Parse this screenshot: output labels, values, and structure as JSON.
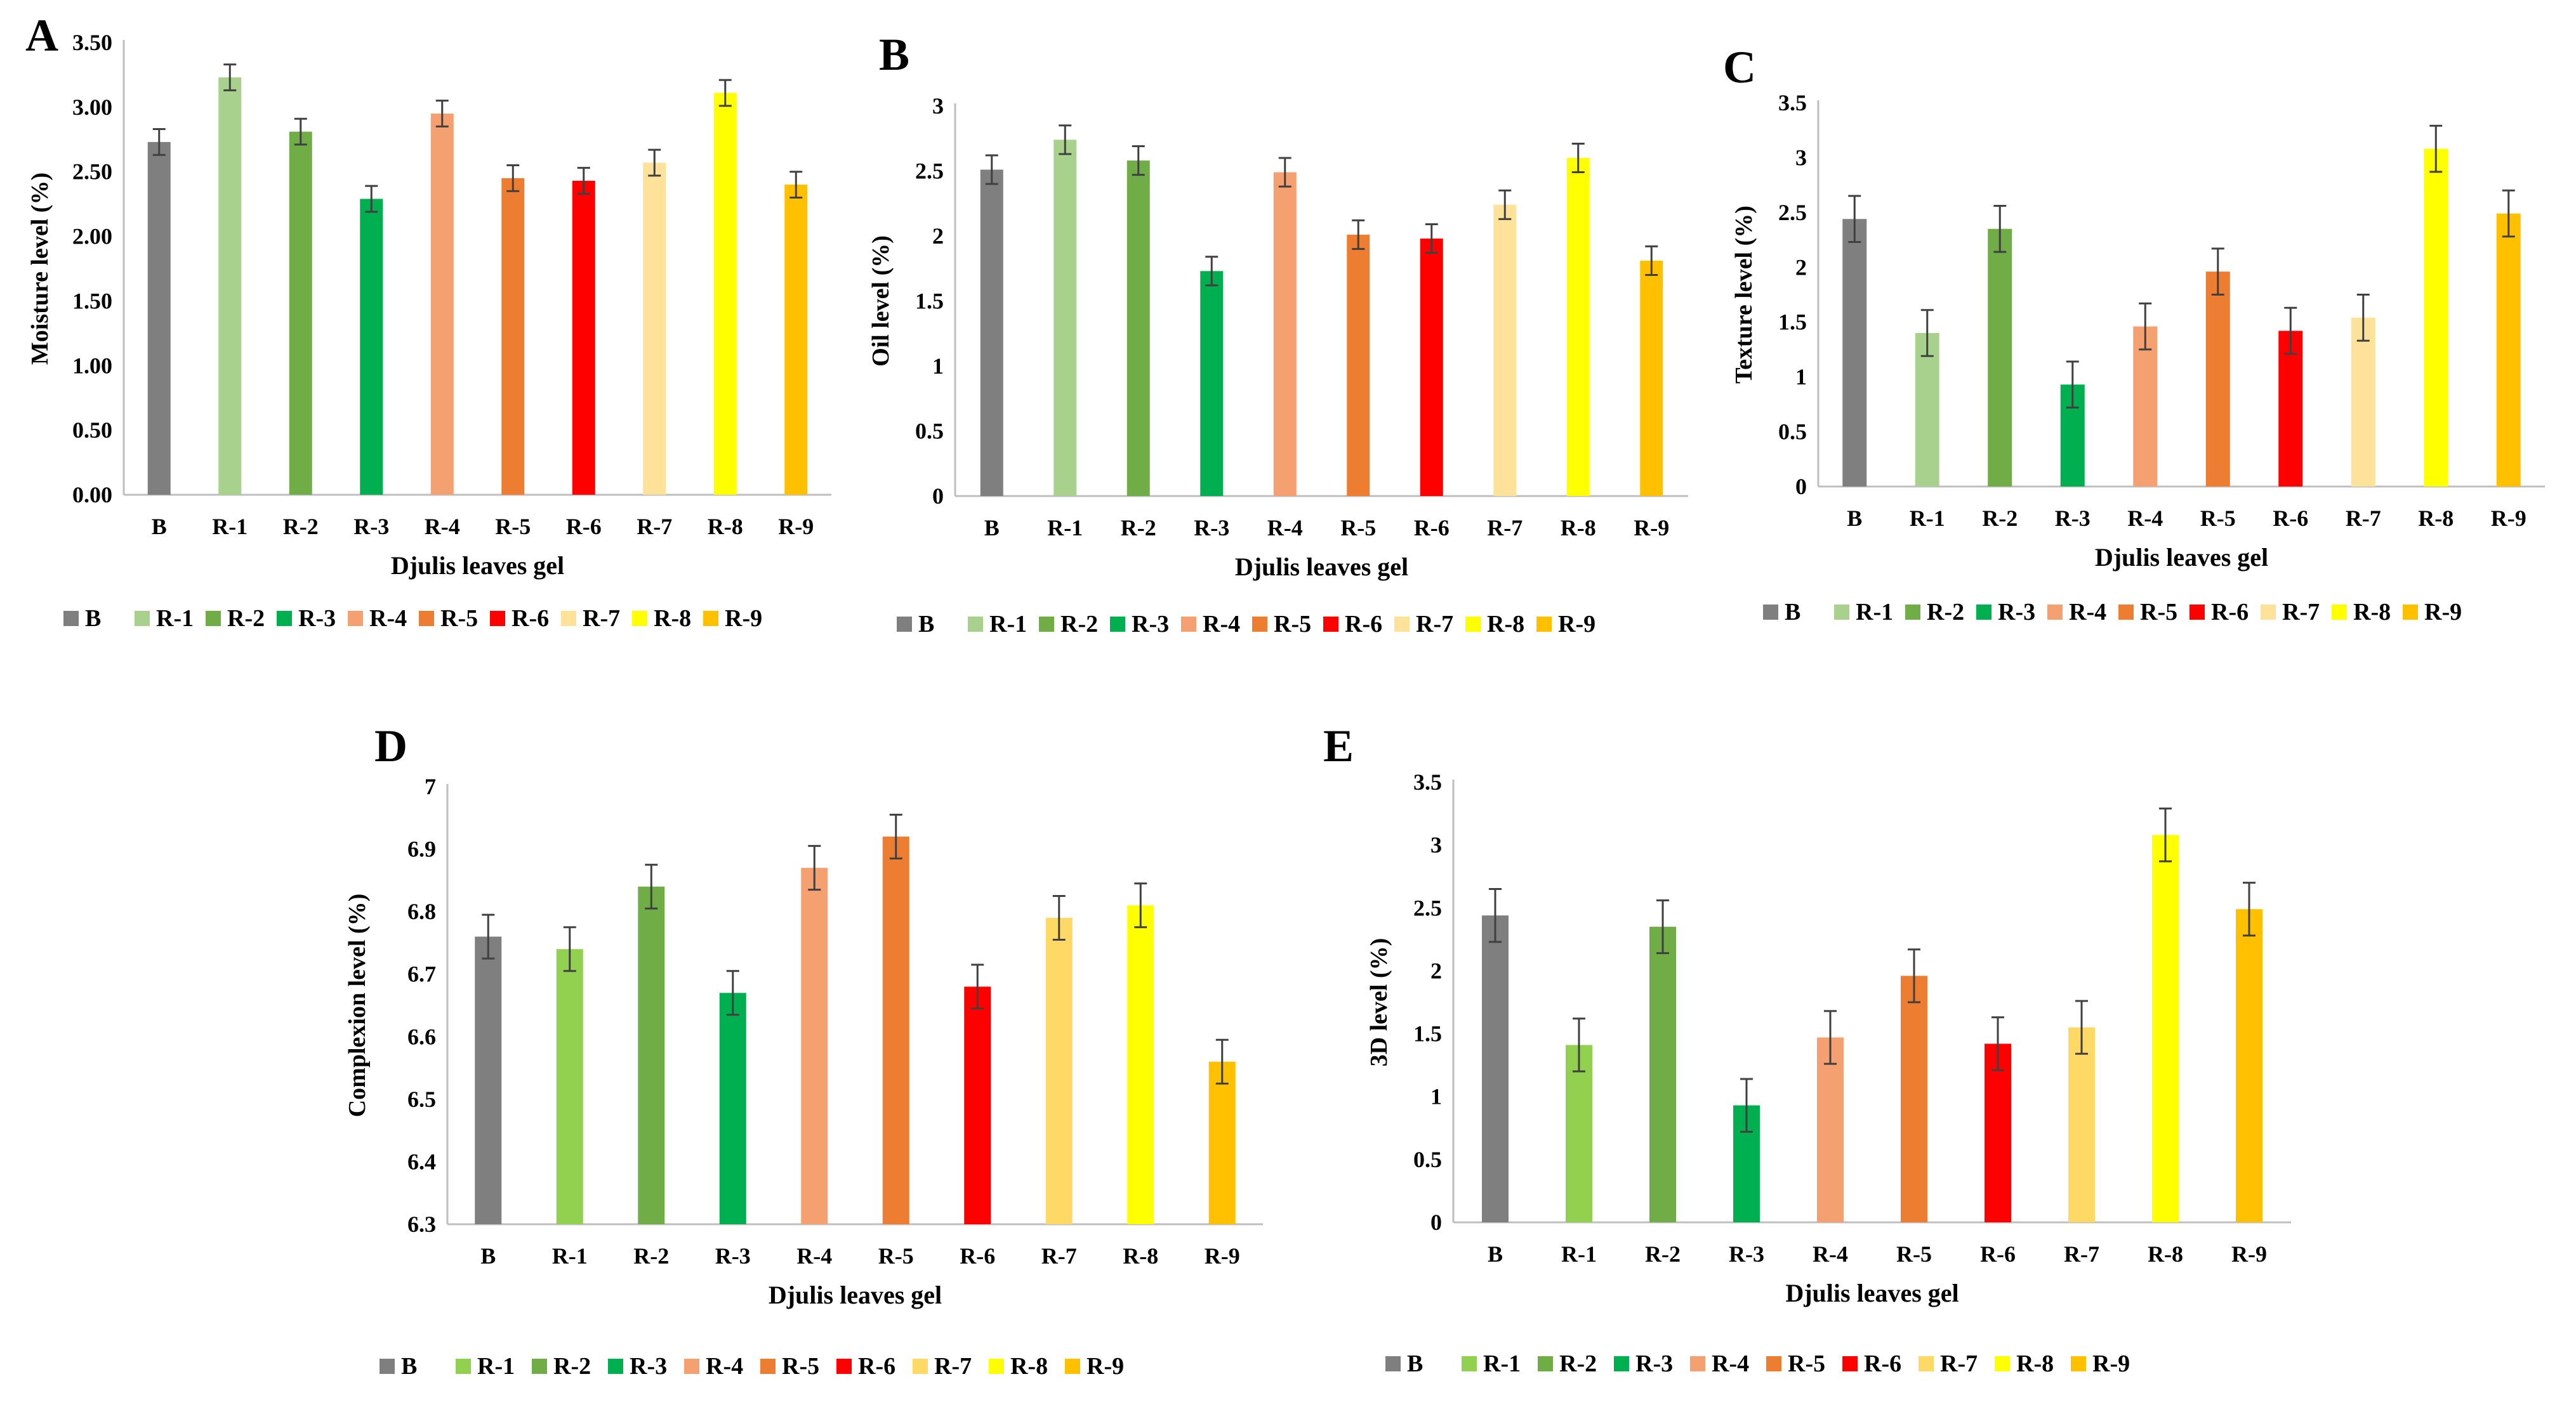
{
  "colors": {
    "B": "#7f7f7f",
    "R-1": "#a9d18e",
    "R-2": "#70ad47",
    "R-3": "#00b050",
    "R-4": "#f4a070",
    "R-5": "#ed7d31",
    "R-6": "#ff0000",
    "R-7": "#ffe29a",
    "R-8": "#ffff00",
    "R-9": "#ffc000",
    "R-1-bright": "#92d050",
    "R-7-bright": "#ffd966"
  },
  "chart_data": [
    {
      "panel": "A",
      "type": "bar",
      "title": "",
      "xlabel": "Djulis leaves gel",
      "ylabel": "Moisture level  (%)",
      "categories": [
        "B",
        "R-1",
        "R-2",
        "R-3",
        "R-4",
        "R-5",
        "R-6",
        "R-7",
        "R-8",
        "R-9"
      ],
      "values": [
        2.73,
        3.23,
        2.81,
        2.29,
        2.95,
        2.45,
        2.43,
        2.57,
        3.11,
        2.4
      ],
      "errors": [
        0.1,
        0.1,
        0.1,
        0.1,
        0.1,
        0.1,
        0.1,
        0.1,
        0.1,
        0.1
      ],
      "ylim": [
        0,
        3.5
      ],
      "yticks": [
        "0.00",
        "0.50",
        "1.00",
        "1.50",
        "2.00",
        "2.50",
        "3.00",
        "3.50"
      ],
      "legend": [
        "B",
        "R-1",
        "R-2",
        "R-3",
        "R-4",
        "R-5",
        "R-6",
        "R-7",
        "R-8",
        "R-9"
      ]
    },
    {
      "panel": "B",
      "type": "bar",
      "title": "",
      "xlabel": "Djulis leaves gel",
      "ylabel": "Oil level  (%)",
      "categories": [
        "B",
        "R-1",
        "R-2",
        "R-3",
        "R-4",
        "R-5",
        "R-6",
        "R-7",
        "R-8",
        "R-9"
      ],
      "values": [
        2.51,
        2.74,
        2.58,
        1.73,
        2.49,
        2.01,
        1.98,
        2.24,
        2.6,
        1.81
      ],
      "errors": [
        0.11,
        0.11,
        0.11,
        0.11,
        0.11,
        0.11,
        0.11,
        0.11,
        0.11,
        0.11
      ],
      "ylim": [
        0,
        3
      ],
      "yticks": [
        "0",
        "0.5",
        "1",
        "1.5",
        "2",
        "2.5",
        "3"
      ],
      "legend": [
        "B",
        "R-1",
        "R-2",
        "R-3",
        "R-4",
        "R-5",
        "R-6",
        "R-7",
        "R-8",
        "R-9"
      ]
    },
    {
      "panel": "C",
      "type": "bar",
      "title": "",
      "xlabel": "Djulis leaves gel",
      "ylabel": "Texture level  (%)",
      "categories": [
        "B",
        "R-1",
        "R-2",
        "R-3",
        "R-4",
        "R-5",
        "R-6",
        "R-7",
        "R-8",
        "R-9"
      ],
      "values": [
        2.44,
        1.4,
        2.35,
        0.93,
        1.46,
        1.96,
        1.42,
        1.54,
        3.08,
        2.49
      ],
      "errors": [
        0.21,
        0.21,
        0.21,
        0.21,
        0.21,
        0.21,
        0.21,
        0.21,
        0.21,
        0.21
      ],
      "ylim": [
        0,
        3.5
      ],
      "yticks": [
        "0",
        "0.5",
        "1",
        "1.5",
        "2",
        "2.5",
        "3",
        "3.5"
      ],
      "legend": [
        "B",
        "R-1",
        "R-2",
        "R-3",
        "R-4",
        "R-5",
        "R-6",
        "R-7",
        "R-8",
        "R-9"
      ]
    },
    {
      "panel": "D",
      "type": "bar",
      "title": "",
      "xlabel": "Djulis leaves gel",
      "ylabel": "Complexion level (%)",
      "categories": [
        "B",
        "R-1",
        "R-2",
        "R-3",
        "R-4",
        "R-5",
        "R-6",
        "R-7",
        "R-8",
        "R-9"
      ],
      "values": [
        6.76,
        6.74,
        6.84,
        6.67,
        6.87,
        6.92,
        6.68,
        6.79,
        6.81,
        6.56
      ],
      "errors": [
        0.035,
        0.035,
        0.035,
        0.035,
        0.035,
        0.035,
        0.035,
        0.035,
        0.035,
        0.035
      ],
      "ylim": [
        6.3,
        7
      ],
      "yticks": [
        "6.3",
        "6.4",
        "6.5",
        "6.6",
        "6.7",
        "6.8",
        "6.9",
        "7"
      ],
      "legend": [
        "B",
        "R-1",
        "R-2",
        "R-3",
        "R-4",
        "R-5",
        "R-6",
        "R-7",
        "R-8",
        "R-9"
      ]
    },
    {
      "panel": "E",
      "type": "bar",
      "title": "",
      "xlabel": "Djulis leaves gel",
      "ylabel": "3D level (%)",
      "categories": [
        "B",
        "R-1",
        "R-2",
        "R-3",
        "R-4",
        "R-5",
        "R-6",
        "R-7",
        "R-8",
        "R-9"
      ],
      "values": [
        2.44,
        1.41,
        2.35,
        0.93,
        1.47,
        1.96,
        1.42,
        1.55,
        3.08,
        2.49
      ],
      "errors": [
        0.21,
        0.21,
        0.21,
        0.21,
        0.21,
        0.21,
        0.21,
        0.21,
        0.21,
        0.21
      ],
      "ylim": [
        0,
        3.5
      ],
      "yticks": [
        "0",
        "0.5",
        "1",
        "1.5",
        "2",
        "2.5",
        "3",
        "3.5"
      ],
      "legend": [
        "B",
        "R-1",
        "R-2",
        "R-3",
        "R-4",
        "R-5",
        "R-6",
        "R-7",
        "R-8",
        "R-9"
      ]
    }
  ]
}
